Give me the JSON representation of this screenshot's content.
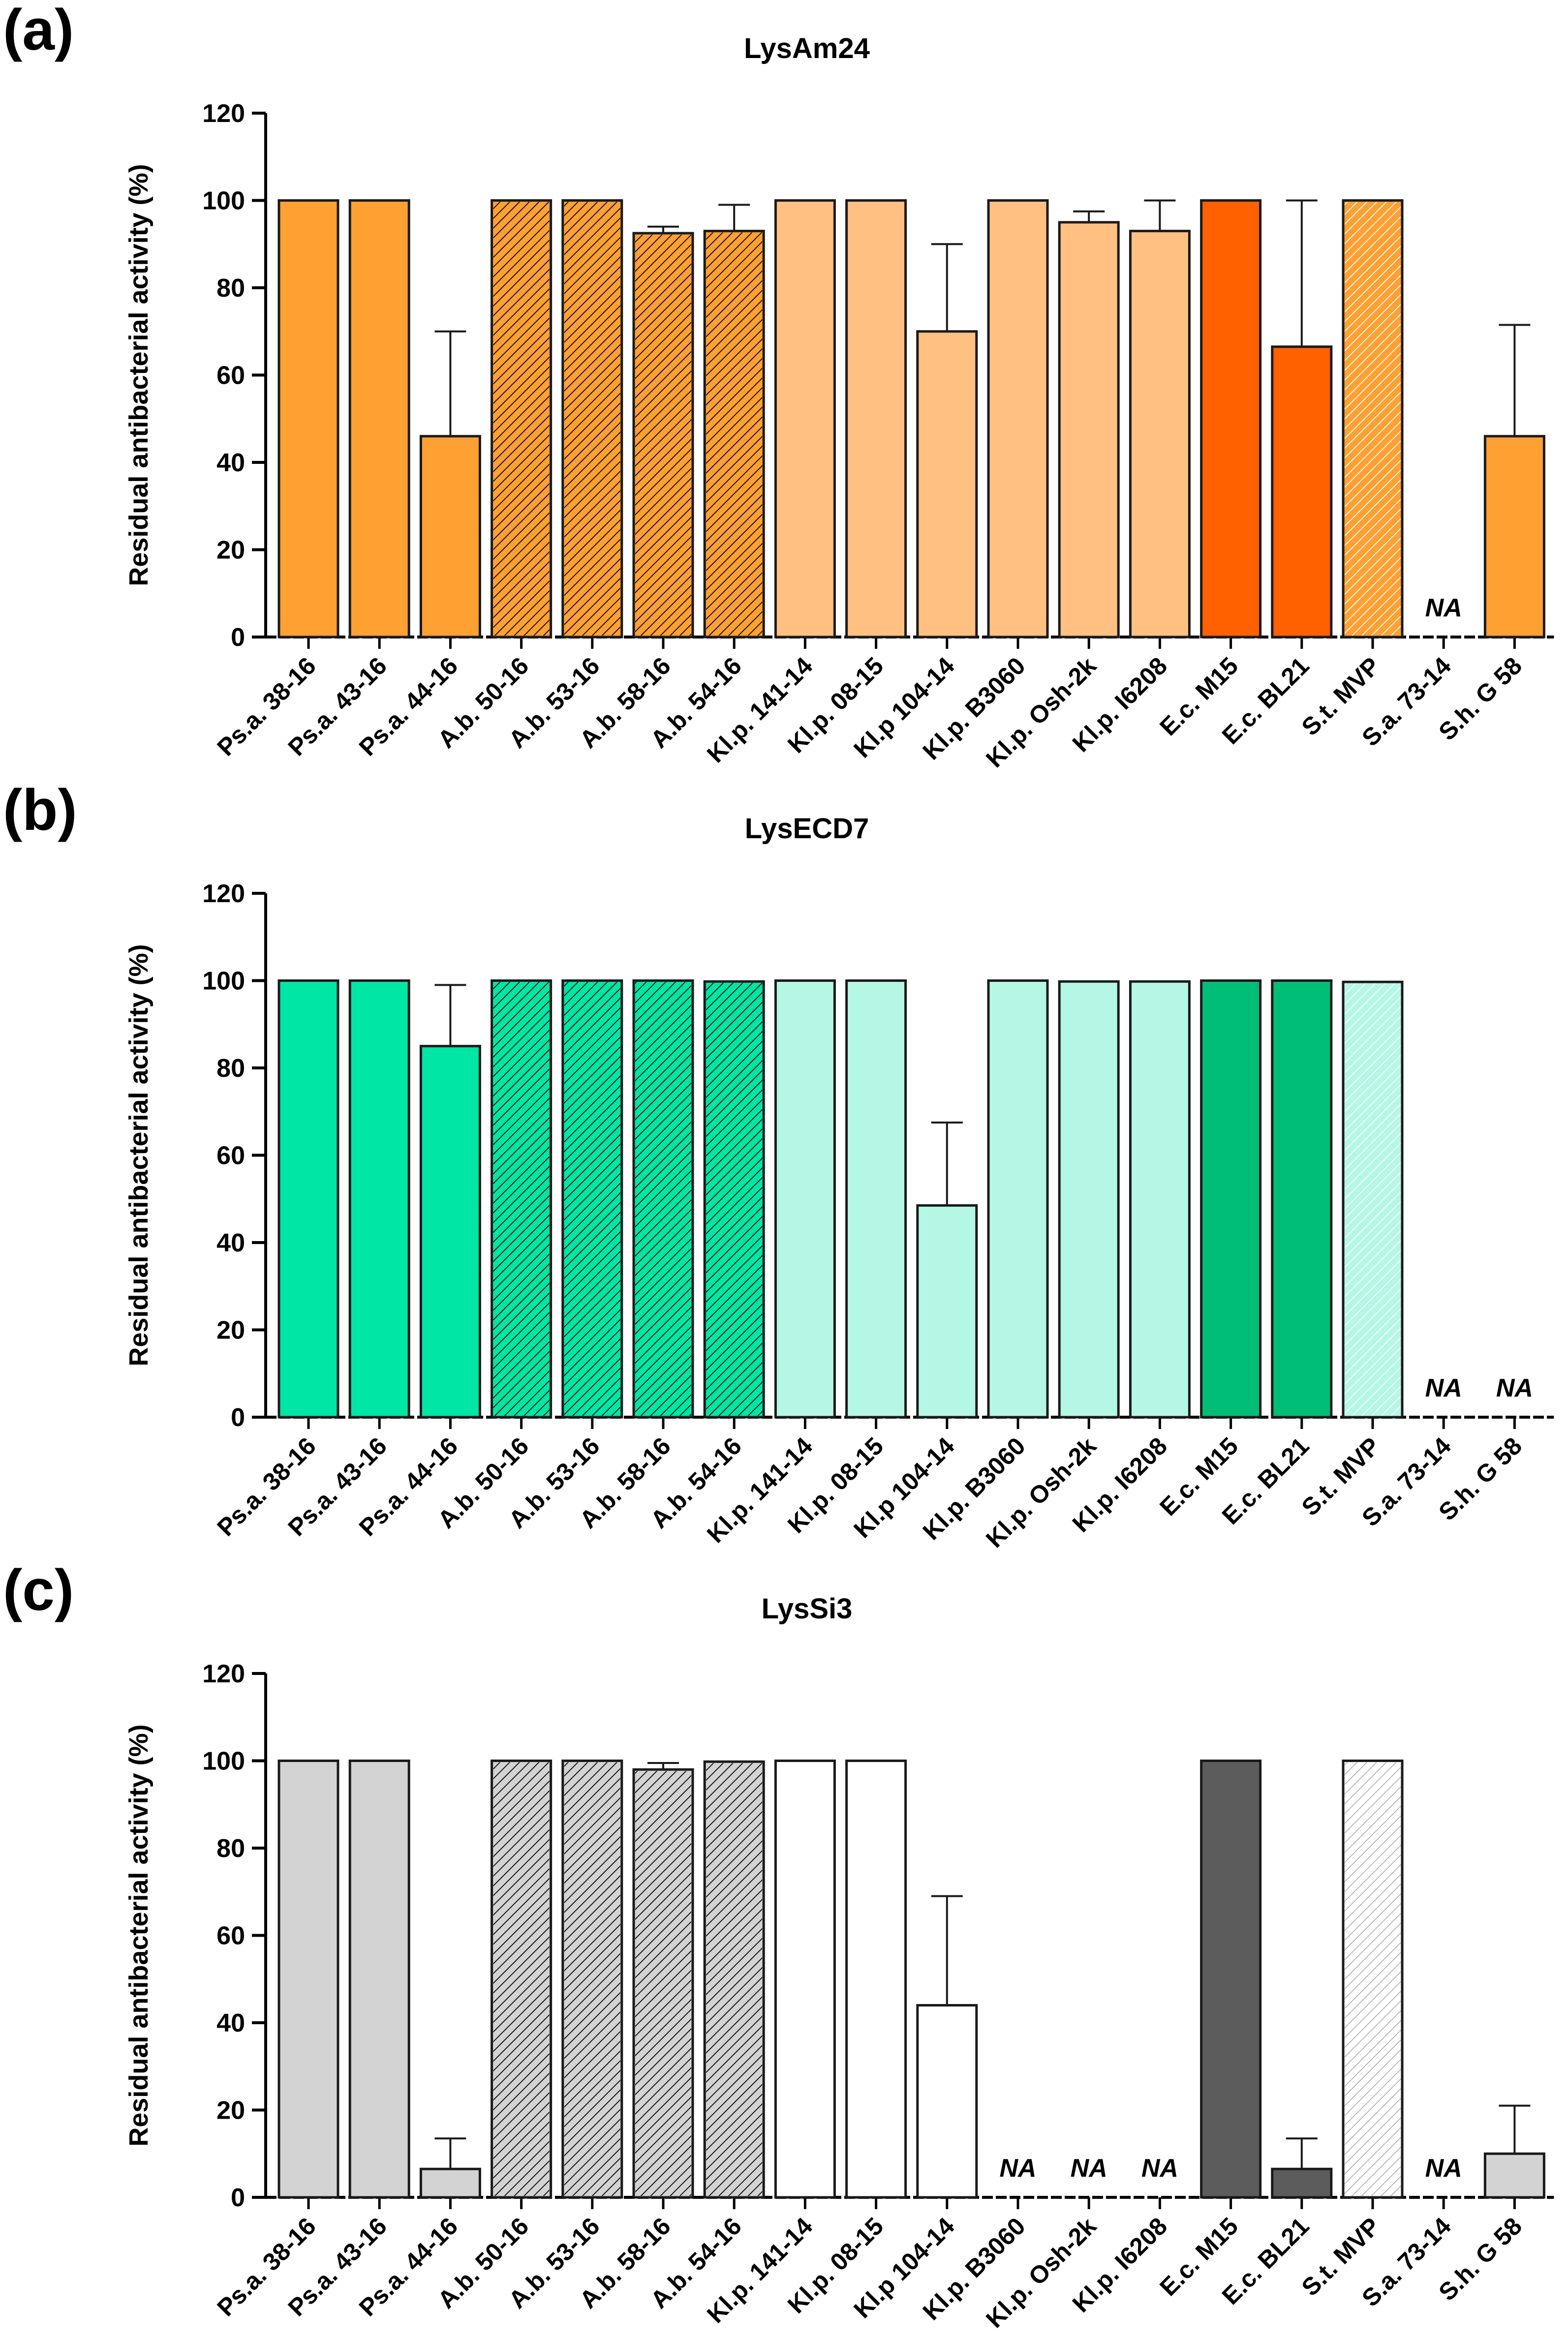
{
  "panels": [
    {
      "letter": "(a)"
    },
    {
      "letter": "(b)"
    },
    {
      "letter": "(c)"
    }
  ],
  "chart_data": [
    {
      "type": "bar",
      "title": "LysAm24",
      "xlabel": "",
      "ylabel": "Residual antibacterial activity (%)",
      "ylim": [
        0,
        120
      ],
      "yticks": [
        0,
        20,
        40,
        60,
        80,
        100,
        120
      ],
      "categories": [
        "Ps.a. 38-16",
        "Ps.a. 43-16",
        "Ps.a. 44-16",
        "A.b. 50-16",
        "A.b. 53-16",
        "A.b. 58-16",
        "A.b. 54-16",
        "Kl.p. 141-14",
        "Kl.p. 08-15",
        "Kl.p 104-14",
        "Kl.p. B3060",
        "Kl.p. Osh-2k",
        "Kl.p. I6208",
        "E.c. M15",
        "E.c. BL21",
        "S.t. MVP",
        "S.a. 73-14",
        "S.h. G 58"
      ],
      "values": [
        100,
        100,
        46,
        100,
        100,
        92.5,
        93,
        100,
        100,
        70,
        100,
        95,
        93,
        100,
        66.5,
        100,
        null,
        46
      ],
      "errors": [
        0,
        0,
        24,
        0,
        0,
        1.5,
        6,
        0,
        0,
        20,
        0,
        2.5,
        7,
        0,
        33.5,
        0,
        null,
        25.5
      ],
      "na_label": "NA",
      "colors": [
        "#FFA033",
        "#FFA033",
        "#FFA033",
        "#FFA033",
        "#FFA033",
        "#FFA033",
        "#FFA033",
        "#FFC082",
        "#FFC082",
        "#FFC082",
        "#FFC082",
        "#FFC082",
        "#FFC082",
        "#FF6000",
        "#FF6000",
        "#FFA033",
        "#FFA033",
        "#FFA033"
      ],
      "patterns": [
        "solid",
        "solid",
        "solid",
        "hatch",
        "hatch",
        "hatch",
        "hatch",
        "solid",
        "solid",
        "solid",
        "solid",
        "solid",
        "solid",
        "solid",
        "solid",
        "hatch-light",
        "solid",
        "solid"
      ]
    },
    {
      "type": "bar",
      "title": "LysECD7",
      "xlabel": "",
      "ylabel": "Residual antibacterial activity (%)",
      "ylim": [
        0,
        120
      ],
      "yticks": [
        0,
        20,
        40,
        60,
        80,
        100,
        120
      ],
      "categories": [
        "Ps.a. 38-16",
        "Ps.a. 43-16",
        "Ps.a. 44-16",
        "A.b. 50-16",
        "A.b. 53-16",
        "A.b. 58-16",
        "A.b. 54-16",
        "Kl.p. 141-14",
        "Kl.p. 08-15",
        "Kl.p 104-14",
        "Kl.p. B3060",
        "Kl.p. Osh-2k",
        "Kl.p. I6208",
        "E.c. M15",
        "E.c. BL21",
        "S.t. MVP",
        "S.a. 73-14",
        "S.h. G 58"
      ],
      "values": [
        100,
        100,
        85,
        100,
        100,
        100,
        99.8,
        100,
        100,
        48.5,
        100,
        99.8,
        99.8,
        100,
        100,
        99.7,
        null,
        null
      ],
      "errors": [
        0,
        0,
        14,
        0,
        0,
        0,
        0,
        0,
        0,
        19,
        0,
        0,
        0,
        0,
        0,
        0,
        null,
        null
      ],
      "na_label": "NA",
      "colors": [
        "#00E6A5",
        "#00E6A5",
        "#00E6A5",
        "#00E6A5",
        "#00E6A5",
        "#00E6A5",
        "#00E6A5",
        "#B4F7E4",
        "#B4F7E4",
        "#B4F7E4",
        "#B4F7E4",
        "#B4F7E4",
        "#B4F7E4",
        "#00BE78",
        "#00BE78",
        "#B4F7E4",
        "#B4F7E4",
        "#B4F7E4"
      ],
      "patterns": [
        "solid",
        "solid",
        "solid",
        "hatch",
        "hatch",
        "hatch",
        "hatch",
        "solid",
        "solid",
        "solid",
        "solid",
        "solid",
        "solid",
        "solid",
        "solid",
        "hatch-light",
        "solid",
        "solid"
      ]
    },
    {
      "type": "bar",
      "title": "LysSi3",
      "xlabel": "",
      "ylabel": "Residual antibacterial activity (%)",
      "ylim": [
        0,
        120
      ],
      "yticks": [
        0,
        20,
        40,
        60,
        80,
        100,
        120
      ],
      "categories": [
        "Ps.a. 38-16",
        "Ps.a. 43-16",
        "Ps.a. 44-16",
        "A.b. 50-16",
        "A.b. 53-16",
        "A.b. 58-16",
        "A.b. 54-16",
        "Kl.p. 141-14",
        "Kl.p. 08-15",
        "Kl.p 104-14",
        "Kl.p. B3060",
        "Kl.p. Osh-2k",
        "Kl.p. I6208",
        "E.c. M15",
        "E.c. BL21",
        "S.t. MVP",
        "S.a. 73-14",
        "S.h. G 58"
      ],
      "values": [
        100,
        100,
        6.5,
        100,
        100,
        98,
        99.8,
        100,
        100,
        44,
        null,
        null,
        null,
        100,
        6.5,
        100,
        null,
        10
      ],
      "errors": [
        0,
        0,
        7,
        0,
        0,
        1.5,
        0,
        0,
        0,
        25,
        null,
        null,
        null,
        0,
        7,
        0,
        null,
        11
      ],
      "na_label": "NA",
      "colors": [
        "#D3D3D3",
        "#D3D3D3",
        "#D3D3D3",
        "#D3D3D3",
        "#D3D3D3",
        "#D3D3D3",
        "#D3D3D3",
        "#FFFFFF",
        "#FFFFFF",
        "#FFFFFF",
        "#FFFFFF",
        "#FFFFFF",
        "#FFFFFF",
        "#5C5C5C",
        "#5C5C5C",
        "#FFFFFF",
        "#D3D3D3",
        "#D3D3D3"
      ],
      "patterns": [
        "solid",
        "solid",
        "solid",
        "hatch",
        "hatch",
        "hatch",
        "hatch",
        "solid",
        "solid",
        "solid",
        "solid",
        "solid",
        "solid",
        "solid",
        "solid",
        "hatch-grey",
        "solid",
        "solid"
      ]
    }
  ]
}
